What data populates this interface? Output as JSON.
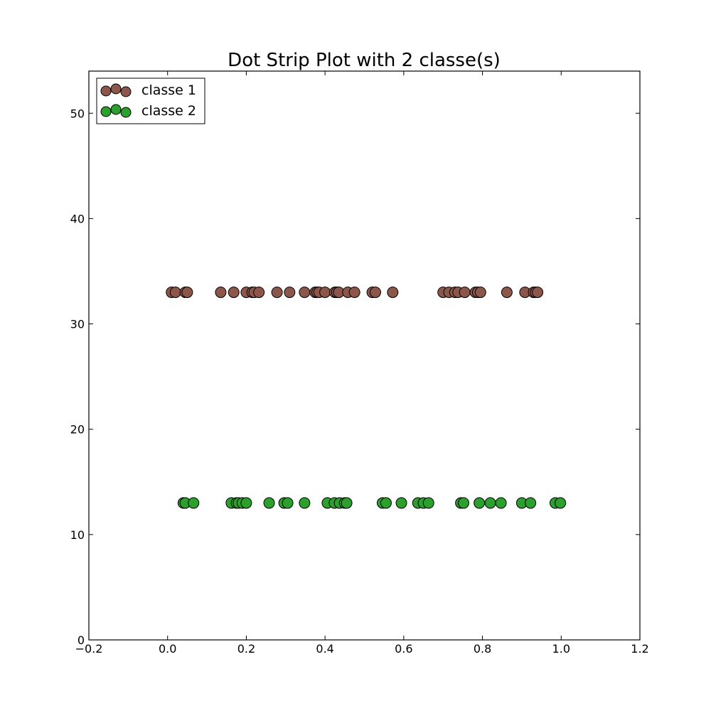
{
  "chart_data": {
    "type": "scatter",
    "title": "Dot Strip Plot with 2 classe(s)",
    "xlabel": "",
    "ylabel": "",
    "xlim": [
      -0.2,
      1.2
    ],
    "ylim": [
      0,
      54
    ],
    "x_ticks": [
      -0.2,
      0.0,
      0.2,
      0.4,
      0.6,
      0.8,
      1.0,
      1.2
    ],
    "x_tick_labels": [
      "−0.2",
      "0.0",
      "0.2",
      "0.4",
      "0.6",
      "0.8",
      "1.0",
      "1.2"
    ],
    "y_ticks": [
      0,
      10,
      20,
      30,
      40,
      50
    ],
    "y_tick_labels": [
      "0",
      "10",
      "20",
      "30",
      "40",
      "50"
    ],
    "grid": false,
    "legend_placement": "upper-left",
    "series": [
      {
        "name": "classe 1",
        "color": "#8c564b",
        "y": 33,
        "x": [
          0.01,
          0.02,
          0.045,
          0.05,
          0.135,
          0.168,
          0.2,
          0.215,
          0.22,
          0.232,
          0.278,
          0.31,
          0.348,
          0.375,
          0.38,
          0.385,
          0.4,
          0.425,
          0.43,
          0.435,
          0.458,
          0.475,
          0.52,
          0.528,
          0.572,
          0.7,
          0.715,
          0.73,
          0.738,
          0.755,
          0.782,
          0.788,
          0.795,
          0.862,
          0.908,
          0.93,
          0.935,
          0.94
        ]
      },
      {
        "name": "classe 2",
        "color": "#2ca02c",
        "y": 13,
        "x": [
          0.04,
          0.045,
          0.066,
          0.162,
          0.175,
          0.18,
          0.19,
          0.2,
          0.258,
          0.296,
          0.305,
          0.348,
          0.406,
          0.424,
          0.437,
          0.45,
          0.455,
          0.546,
          0.555,
          0.594,
          0.636,
          0.65,
          0.663,
          0.745,
          0.752,
          0.792,
          0.82,
          0.847,
          0.9,
          0.922,
          0.985,
          0.998
        ]
      }
    ]
  }
}
